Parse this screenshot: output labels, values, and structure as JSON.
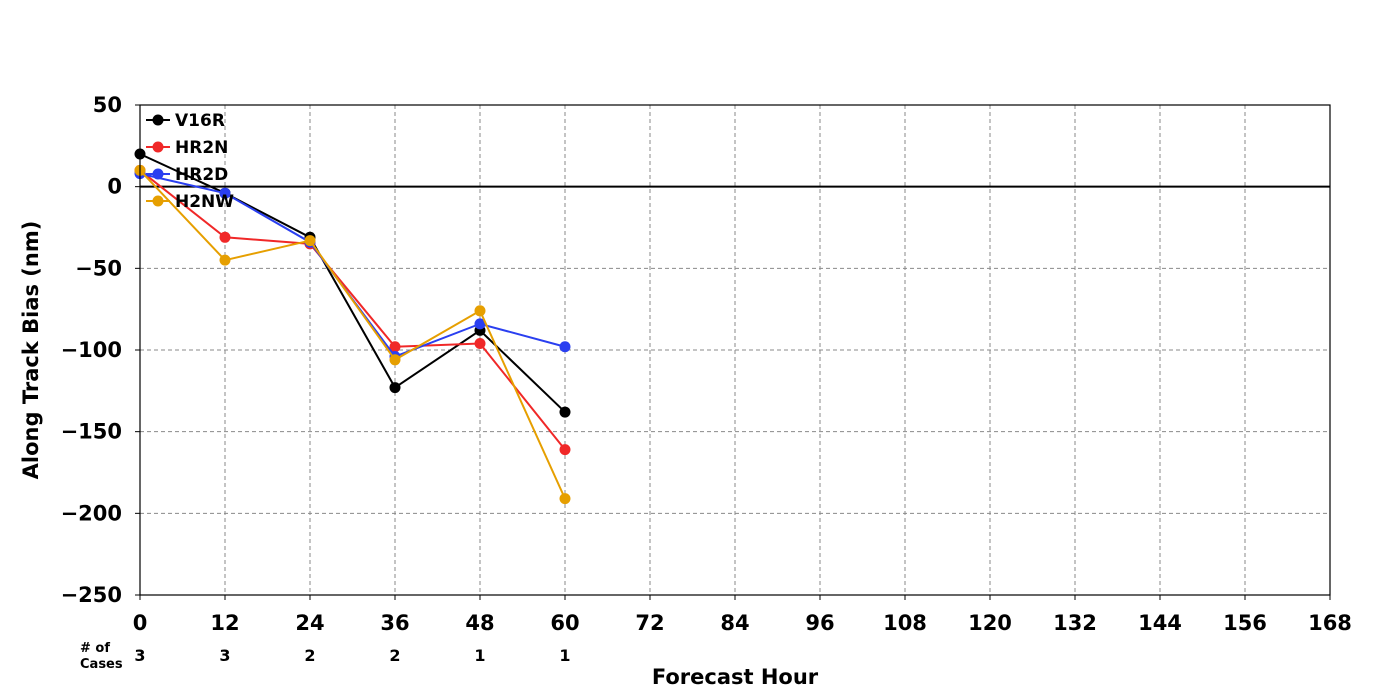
{
  "chart_data": {
    "type": "line",
    "title": "",
    "xlabel": "Forecast Hour",
    "ylabel": "Along Track Bias (nm)",
    "xlim": [
      0,
      168
    ],
    "ylim": [
      -250,
      50
    ],
    "x_ticks": [
      0,
      12,
      24,
      36,
      48,
      60,
      72,
      84,
      96,
      108,
      120,
      132,
      144,
      156,
      168
    ],
    "y_ticks": [
      50,
      0,
      -50,
      -100,
      -150,
      -200,
      -250
    ],
    "y_tick_labels": [
      "50",
      "0",
      "−50",
      "−100",
      "−150",
      "−200",
      "−250"
    ],
    "grid": true,
    "zero_line": true,
    "legend_position": "top-left",
    "cases_label_line1": "# of",
    "cases_label_line2": "Cases",
    "cases": [
      {
        "x": 0,
        "n": "3"
      },
      {
        "x": 12,
        "n": "3"
      },
      {
        "x": 24,
        "n": "2"
      },
      {
        "x": 36,
        "n": "2"
      },
      {
        "x": 48,
        "n": "1"
      },
      {
        "x": 60,
        "n": "1"
      }
    ],
    "series": [
      {
        "name": "V16R",
        "color": "#000000",
        "x": [
          0,
          12,
          24,
          36,
          48,
          60
        ],
        "y": [
          20,
          -4,
          -31,
          -123,
          -88,
          -138
        ]
      },
      {
        "name": "HR2N",
        "color": "#f02828",
        "x": [
          0,
          12,
          24,
          36,
          48,
          60
        ],
        "y": [
          10,
          -31,
          -35,
          -98,
          -96,
          -161
        ]
      },
      {
        "name": "HR2D",
        "color": "#2a3ff0",
        "x": [
          0,
          12,
          24,
          36,
          48,
          60
        ],
        "y": [
          8,
          -4,
          -34,
          -104,
          -84,
          -98
        ]
      },
      {
        "name": "H2NW",
        "color": "#e69f00",
        "x": [
          0,
          12,
          24,
          36,
          48,
          60
        ],
        "y": [
          10,
          -45,
          -33,
          -106,
          -76,
          -191
        ]
      }
    ]
  }
}
